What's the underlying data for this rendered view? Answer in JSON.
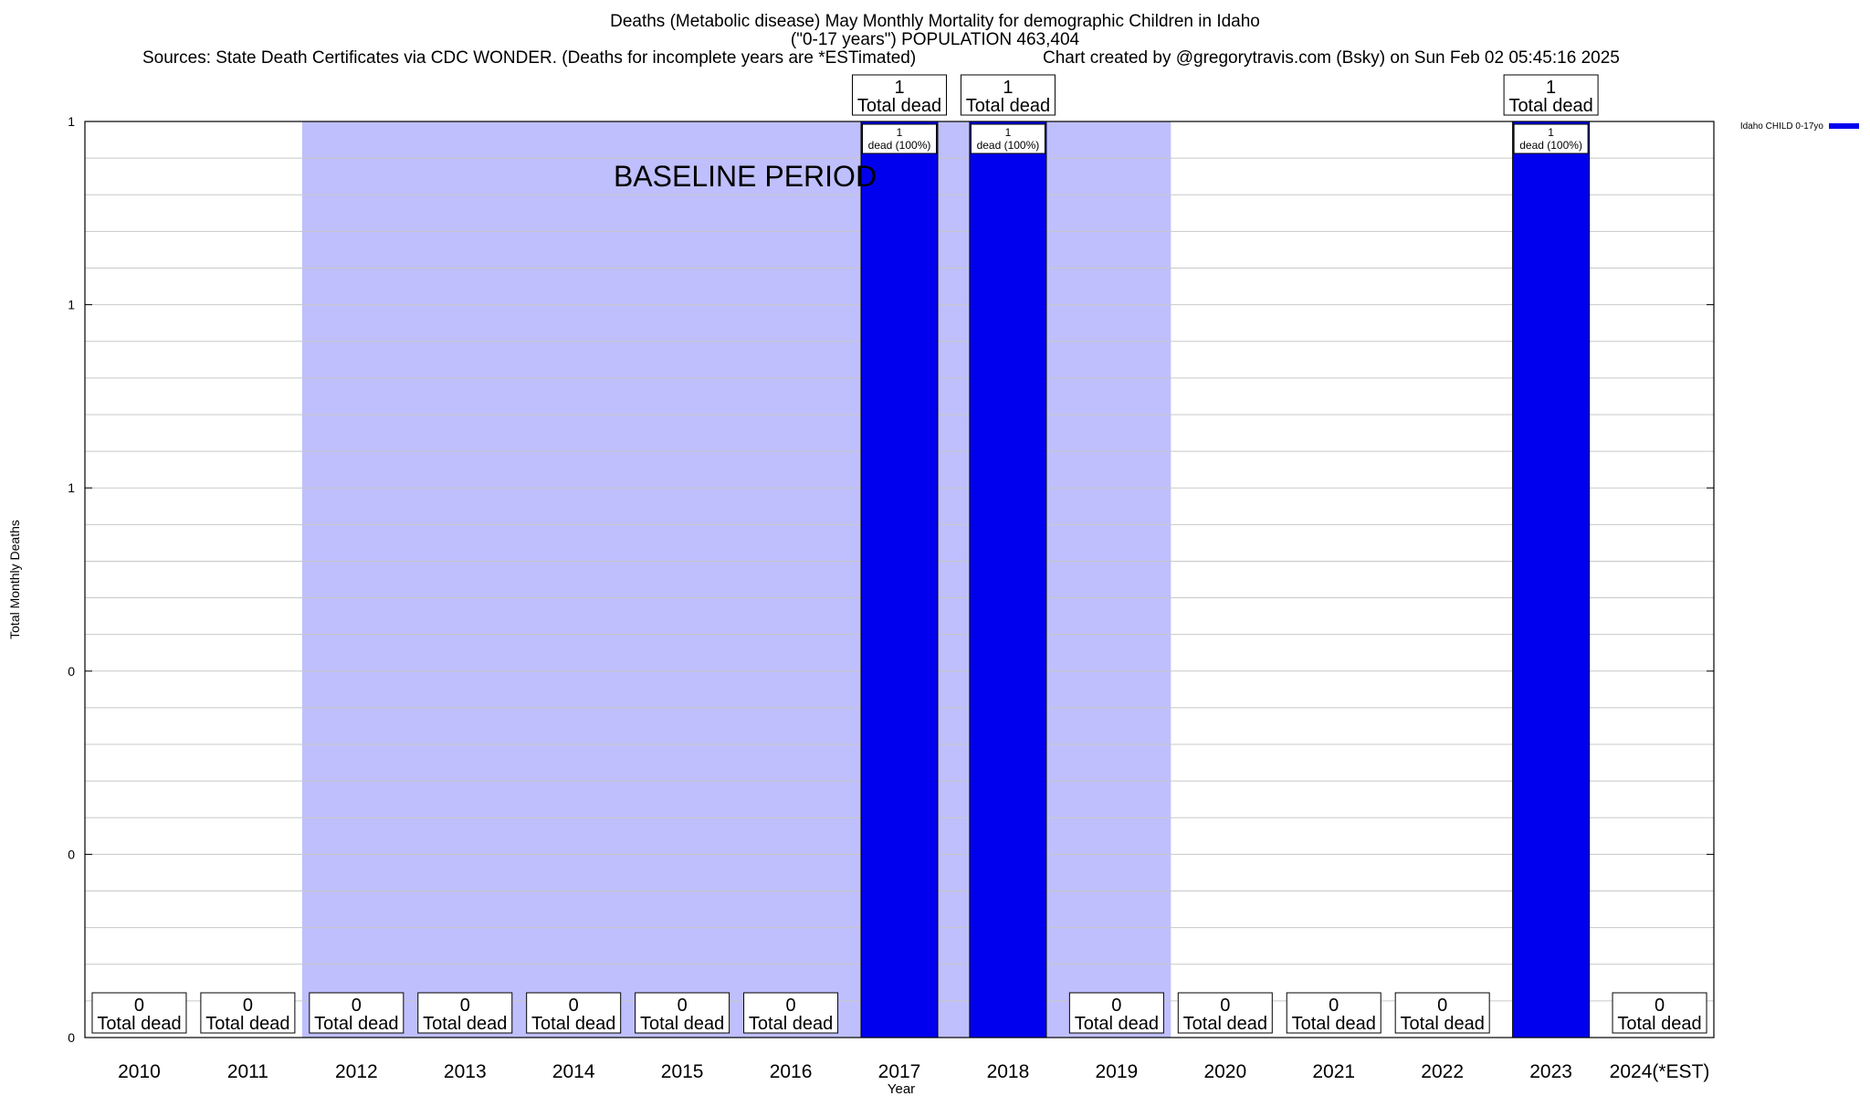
{
  "chart_data": {
    "type": "bar",
    "title_line1": "Deaths (Metabolic disease) May Monthly Mortality for demographic Children in Idaho",
    "title_line2": "(\"0-17 years\") POPULATION 463,404",
    "sources": "Sources: State Death Certificates via CDC WONDER. (Deaths for incomplete years are *ESTimated)",
    "credit": "Chart created by @gregorytravis.com (Bsky) on Sun Feb 02 05:45:16 2025",
    "xlabel": "Year",
    "ylabel": "Total Monthly Deaths",
    "ylim": [
      0,
      1
    ],
    "y_tick_labels": [
      "0",
      "0",
      "0",
      "1",
      "1",
      "1"
    ],
    "grid": true,
    "legend_position": "top-right",
    "baseline_label": "BASELINE PERIOD",
    "baseline_range": [
      "2012",
      "2019"
    ],
    "categories": [
      "2010",
      "2011",
      "2012",
      "2013",
      "2014",
      "2015",
      "2016",
      "2017",
      "2018",
      "2019",
      "2020",
      "2021",
      "2022",
      "2023",
      "2024(*EST)"
    ],
    "series": [
      {
        "name": "Idaho CHILD 0-17yo",
        "color": "#0000ee",
        "values": [
          0,
          0,
          0,
          0,
          0,
          0,
          0,
          1,
          1,
          0,
          0,
          0,
          0,
          1,
          0
        ]
      }
    ],
    "total_label_suffix": "Total dead",
    "bar_inner_labels": {
      "2017": {
        "value": "1",
        "text": "dead (100%)"
      },
      "2018": {
        "value": "1",
        "text": "dead (100%)"
      },
      "2023": {
        "value": "1",
        "text": "dead (100%)"
      }
    },
    "colors": {
      "bar": "#0000ee",
      "baseline_shade": "#bfbffd",
      "grid": "#c8c8c8"
    }
  }
}
